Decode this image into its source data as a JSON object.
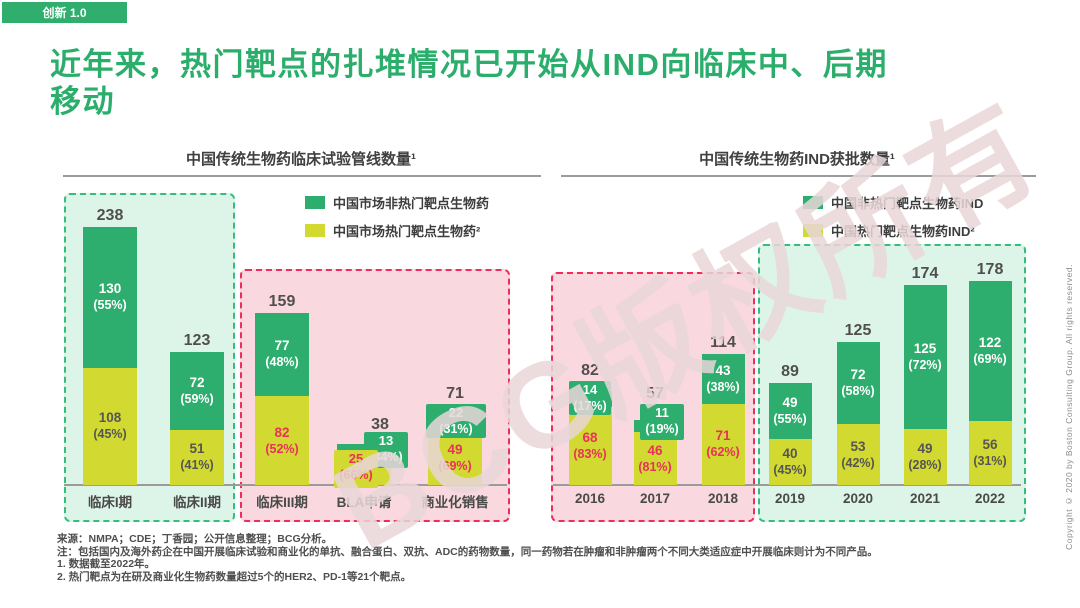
{
  "badge": {
    "label": "创新 1.0"
  },
  "title": {
    "line1": "近年来，热门靶点的扎堆情况已开始从IND向临床中、后期",
    "line2": "移动"
  },
  "watermark": "BCG版权所有",
  "copyright": "Copyright © 2020 by Boston Consulting Group. All rights reserved.",
  "footnotes": {
    "source": "来源：NMPA；CDE；丁香园；公开信息整理；BCG分析。",
    "note": "注：包括国内及海外药企在中国开展临床试验和商业化的单抗、融合蛋白、双抗、ADC的药物数量，同一药物若在肿瘤和非肿瘤两个不同大类适应症中开展临床则计为不同产品。",
    "note1": "1. 数据截至2022年。",
    "note2": "2. 热门靶点为在研及商业化生物药数量超过5个的HER2、PD-1等21个靶点。"
  },
  "colors": {
    "green": "#2eae6e",
    "yellow": "#d2d930",
    "mint_fill": "#ddf5e9",
    "pink_fill": "#f9d8df",
    "green_border": "#35bd7c",
    "pink_border": "#ee2d5d",
    "accent_red": "#e8315b",
    "text_dark": "#555555"
  },
  "chart_data": [
    {
      "type": "bar",
      "stacked": true,
      "title": "中国传统生物药临床试验管线数量¹",
      "categories": [
        "临床I期",
        "临床II期",
        "临床III期",
        "BLA申请",
        "商业化销售"
      ],
      "totals": [
        238,
        123,
        159,
        38,
        71
      ],
      "series": [
        {
          "name": "中国市场非热门靶点生物药",
          "color": "#2eae6e",
          "values": [
            130,
            72,
            77,
            13,
            22
          ],
          "pct": [
            55,
            59,
            48,
            34,
            31
          ]
        },
        {
          "name": "中国市场热门靶点生物药²",
          "color": "#d2d930",
          "values": [
            108,
            51,
            82,
            25,
            49
          ],
          "pct": [
            45,
            41,
            52,
            66,
            69
          ]
        }
      ],
      "legend_position": "top-right",
      "axis": "hidden",
      "ylim": [
        0,
        240
      ],
      "highlight_groups": [
        {
          "categories": [
            "临床I期",
            "临床II期"
          ],
          "style": "green"
        },
        {
          "categories": [
            "临床III期",
            "BLA申请",
            "商业化销售"
          ],
          "style": "pink"
        }
      ]
    },
    {
      "type": "bar",
      "stacked": true,
      "title": "中国传统生物药IND获批数量¹",
      "categories": [
        "2016",
        "2017",
        "2018",
        "2019",
        "2020",
        "2021",
        "2022"
      ],
      "totals": [
        82,
        57,
        114,
        89,
        125,
        174,
        178
      ],
      "series": [
        {
          "name": "中国非热门靶点生物药IND",
          "color": "#2eae6e",
          "values": [
            14,
            11,
            43,
            49,
            72,
            125,
            122
          ],
          "pct": [
            17,
            19,
            38,
            55,
            58,
            72,
            69
          ]
        },
        {
          "name": "中国热门靶点生物药IND²",
          "color": "#d2d930",
          "values": [
            68,
            46,
            71,
            40,
            53,
            49,
            56
          ],
          "pct": [
            83,
            81,
            62,
            45,
            42,
            28,
            31
          ]
        }
      ],
      "legend_position": "top-right",
      "axis": "hidden",
      "ylim": [
        0,
        180
      ],
      "highlight_groups": [
        {
          "categories": [
            "2016",
            "2017",
            "2018"
          ],
          "style": "pink"
        },
        {
          "categories": [
            "2019",
            "2020",
            "2021",
            "2022"
          ],
          "style": "green"
        }
      ]
    }
  ]
}
